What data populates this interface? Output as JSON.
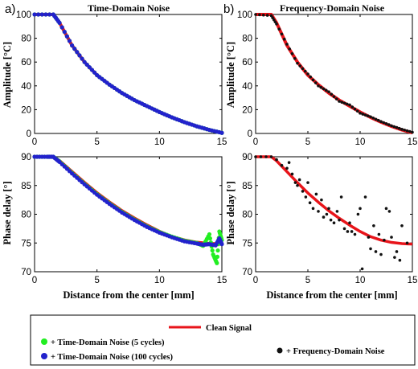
{
  "legend": {
    "clean": "Clean Signal",
    "td5": "+ Time-Domain Noise (5 cycles)",
    "td100": "+ Time-Domain Noise (100 cycles)",
    "fd": "+ Frequency-Domain Noise"
  },
  "colors": {
    "clean": "#e8141a",
    "td5": "#22ee22",
    "td100": "#2222cc",
    "fd": "#111111"
  },
  "chart_data": [
    {
      "type": "scatter",
      "panel_label": "a)",
      "title": "Time-Domain Noise",
      "xlabel": "",
      "ylabel": "Amplitude [°C]",
      "xlim": [
        0,
        15
      ],
      "ylim": [
        0,
        100
      ],
      "xticks": [
        0,
        5,
        10,
        15
      ],
      "yticks": [
        0,
        20,
        40,
        60,
        80,
        100
      ],
      "series": [
        {
          "name": "Clean Signal",
          "kind": "line",
          "x": [
            0,
            1.5,
            2,
            3,
            4,
            5,
            6,
            7,
            8,
            9,
            10,
            11,
            12,
            13,
            14,
            15
          ],
          "y": [
            100,
            100,
            93,
            74,
            60,
            49,
            41,
            34,
            28,
            23,
            18,
            13.5,
            9.5,
            6,
            3,
            0.5
          ]
        },
        {
          "name": "+ Time-Domain Noise (5 cycles)",
          "kind": "scatter",
          "x": [
            0,
            1.5,
            2,
            3,
            4,
            5,
            6,
            7,
            8,
            9,
            10,
            11,
            12,
            13,
            14,
            15
          ],
          "y": [
            100,
            100,
            93,
            74,
            60,
            49,
            41,
            34,
            28,
            23,
            18,
            13.5,
            9.5,
            6,
            3,
            0.5
          ]
        },
        {
          "name": "+ Time-Domain Noise (100 cycles)",
          "kind": "scatter",
          "x": [
            0,
            1.5,
            2,
            3,
            4,
            5,
            6,
            7,
            8,
            9,
            10,
            11,
            12,
            13,
            14,
            15
          ],
          "y": [
            100,
            100,
            93,
            74,
            60,
            49,
            41,
            34,
            28,
            23,
            18,
            13.5,
            9.5,
            6,
            3,
            0.5
          ]
        }
      ]
    },
    {
      "type": "scatter",
      "panel_label": "b)",
      "title": "Frequency-Domain Noise",
      "xlabel": "",
      "ylabel": "Amplitude [°C]",
      "xlim": [
        0,
        15
      ],
      "ylim": [
        0,
        100
      ],
      "xticks": [
        0,
        5,
        10,
        15
      ],
      "yticks": [
        0,
        20,
        40,
        60,
        80,
        100
      ],
      "series": [
        {
          "name": "Clean Signal",
          "kind": "line",
          "x": [
            0,
            1.5,
            2,
            3,
            4,
            5,
            6,
            7,
            8,
            9,
            10,
            11,
            12,
            13,
            14,
            15
          ],
          "y": [
            100,
            100,
            93,
            74,
            60,
            49,
            41,
            34,
            28,
            23,
            18,
            13.5,
            9.5,
            6,
            3,
            0.5
          ]
        },
        {
          "name": "+ Frequency-Domain Noise",
          "kind": "scatter",
          "x": [
            0,
            1.5,
            2,
            3,
            4,
            5,
            6,
            7,
            8,
            9,
            10,
            11,
            12,
            13,
            14,
            15
          ],
          "y": [
            100,
            99,
            92,
            75,
            59,
            50,
            40,
            35,
            27,
            24,
            17,
            14,
            10,
            6.5,
            3.5,
            1
          ]
        }
      ]
    },
    {
      "type": "scatter",
      "panel_label": "",
      "title": "",
      "xlabel": "Distance from the center [mm]",
      "ylabel": "Phase delay [°]",
      "xlim": [
        0,
        15
      ],
      "ylim": [
        70,
        90
      ],
      "xticks": [
        0,
        5,
        10,
        15
      ],
      "yticks": [
        70,
        75,
        80,
        85,
        90
      ],
      "series": [
        {
          "name": "Clean Signal",
          "kind": "line",
          "x": [
            0,
            1.5,
            2,
            3,
            4,
            5,
            6,
            7,
            8,
            9,
            10,
            11,
            12,
            13,
            14,
            15
          ],
          "y": [
            90,
            90,
            89.3,
            87.4,
            85.5,
            83.7,
            82.1,
            80.6,
            79.3,
            78.1,
            77,
            76.1,
            75.5,
            75.1,
            74.9,
            74.8
          ]
        },
        {
          "name": "+ Time-Domain Noise (5 cycles)",
          "kind": "scatter",
          "x": [
            0,
            1,
            1.5,
            2,
            3,
            4,
            5,
            6,
            7,
            8,
            9,
            10,
            11,
            12,
            13,
            13.5,
            14,
            14.3,
            14.6,
            14.8,
            15
          ],
          "y": [
            90,
            90,
            90,
            89.2,
            87.2,
            85.3,
            83.5,
            81.9,
            80.4,
            79.1,
            77.9,
            76.9,
            76.1,
            75.4,
            75,
            74.5,
            76.5,
            73,
            71.5,
            77,
            75.5
          ]
        },
        {
          "name": "+ Time-Domain Noise (100 cycles)",
          "kind": "scatter",
          "x": [
            0,
            1,
            1.5,
            2,
            3,
            4,
            5,
            6,
            7,
            8,
            9,
            10,
            11,
            12,
            13,
            13.5,
            14,
            14.5,
            14.8,
            15
          ],
          "y": [
            90,
            90,
            90,
            89.1,
            87.1,
            85.2,
            83.4,
            81.8,
            80.3,
            79,
            77.8,
            76.8,
            76,
            75.3,
            74.9,
            74.7,
            74.8,
            74.6,
            75.8,
            74.8
          ]
        }
      ]
    },
    {
      "type": "scatter",
      "panel_label": "",
      "title": "",
      "xlabel": "Distance from the center [mm]",
      "ylabel": "Phase delay [°]",
      "xlim": [
        0,
        15
      ],
      "ylim": [
        70,
        90
      ],
      "xticks": [
        0,
        5,
        10,
        15
      ],
      "yticks": [
        70,
        75,
        80,
        85,
        90
      ],
      "series": [
        {
          "name": "Clean Signal",
          "kind": "line",
          "x": [
            0,
            1.5,
            2,
            3,
            4,
            5,
            6,
            7,
            8,
            9,
            10,
            11,
            12,
            13,
            14,
            15
          ],
          "y": [
            90,
            90,
            89.3,
            87.4,
            85.5,
            83.7,
            82.1,
            80.6,
            79.3,
            78.1,
            77,
            76.1,
            75.5,
            75.1,
            74.9,
            74.8
          ]
        },
        {
          "name": "+ Frequency-Domain Noise",
          "kind": "scatter",
          "x": [
            0,
            0.5,
            1,
            1.5,
            2,
            2.5,
            3,
            3.2,
            3.5,
            3.8,
            4,
            4.2,
            4.5,
            4.8,
            5,
            5.2,
            5.5,
            5.8,
            6,
            6.3,
            6.5,
            6.8,
            7,
            7.2,
            7.5,
            7.8,
            8,
            8.2,
            8.5,
            8.8,
            9,
            9.2,
            9.5,
            9.8,
            10,
            10.2,
            10.5,
            10.8,
            11,
            11.3,
            11.5,
            11.8,
            12,
            12.3,
            12.5,
            12.8,
            13,
            13.3,
            13.5,
            13.8,
            14,
            14.5
          ],
          "y": [
            90,
            90,
            90,
            90,
            89.5,
            88.5,
            88,
            89,
            87,
            85.5,
            85,
            86,
            84,
            83,
            85.5,
            82,
            81,
            83.5,
            80.5,
            82.5,
            79.5,
            80,
            81,
            79,
            78.5,
            80.5,
            79,
            83,
            77.5,
            77,
            78.5,
            77,
            76.5,
            80,
            81,
            70.5,
            83,
            76,
            74,
            78,
            73.5,
            76.5,
            73,
            75.5,
            81,
            80.5,
            76,
            72.5,
            73.5,
            72,
            78,
            75
          ]
        }
      ]
    }
  ]
}
